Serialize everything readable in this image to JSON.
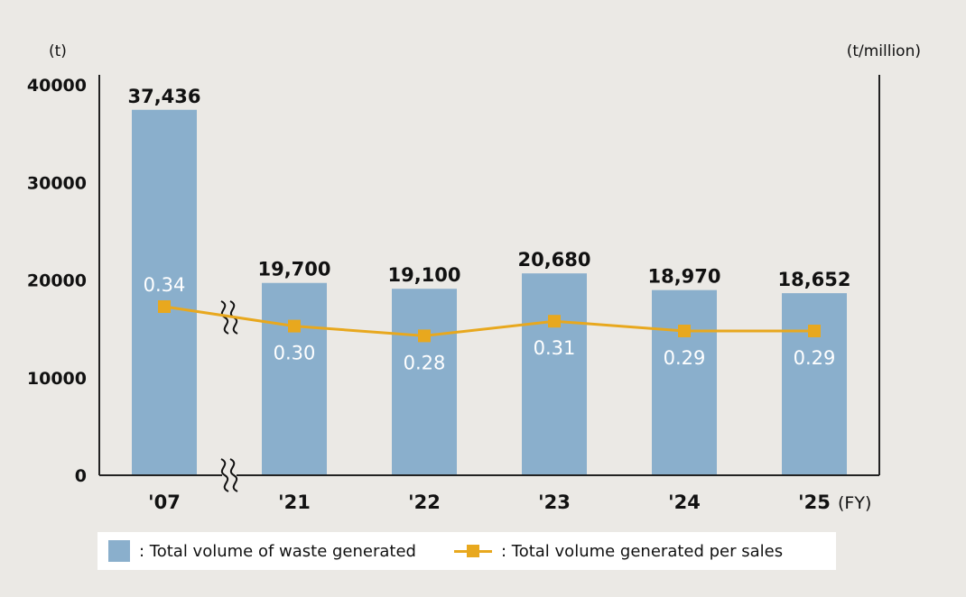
{
  "chart_data": {
    "type": "bar",
    "categories": [
      "'07",
      "'21",
      "'22",
      "'23",
      "'24",
      "'25"
    ],
    "highlight_category_index": 5,
    "x_suffix": "(FY)",
    "left_axis": {
      "unit": "(t)",
      "ticks": [
        "0",
        "10000",
        "20000",
        "30000",
        "40000"
      ],
      "ylim": [
        0,
        40000
      ]
    },
    "right_axis": {
      "unit": "(t/million)"
    },
    "axis_break_between": [
      "'07",
      "'21"
    ],
    "series": [
      {
        "name": "Total volume of waste generated",
        "kind": "bar",
        "values": [
          37436,
          19700,
          19100,
          20680,
          18970,
          18652
        ],
        "labels": [
          "37,436",
          "19,700",
          "19,100",
          "20,680",
          "18,970",
          "18,652"
        ]
      },
      {
        "name": "Total volume generated per sales",
        "kind": "line",
        "values": [
          0.34,
          0.3,
          0.28,
          0.31,
          0.29,
          0.29
        ],
        "labels": [
          "0.34",
          "0.30",
          "0.28",
          "0.31",
          "0.29",
          "0.29"
        ]
      }
    ],
    "colors": {
      "bar": "#8aafcc",
      "line": "#e8a81e",
      "highlight": "#e02020",
      "axis": "#222222"
    },
    "legend": {
      "position": "bottom",
      "bar_label": ": Total volume of waste generated",
      "line_label": ": Total volume generated per sales"
    }
  }
}
